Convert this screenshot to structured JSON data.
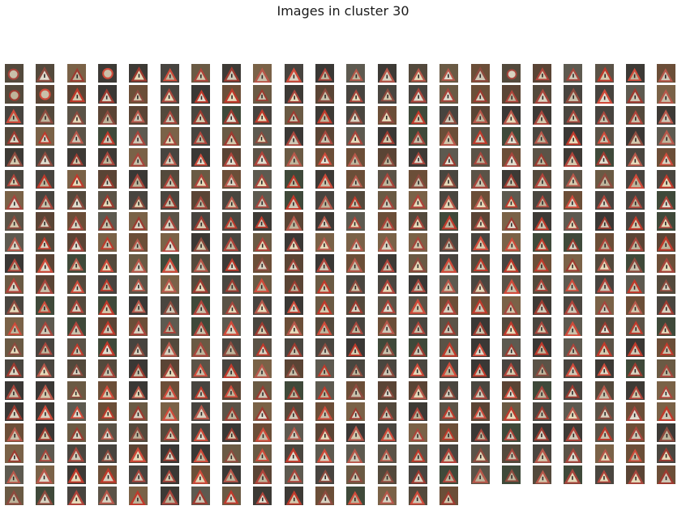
{
  "figure": {
    "title": "Images in cluster 30"
  },
  "chart_data": {
    "type": "image_grid",
    "title": "Images in cluster 30",
    "cluster_id": 30,
    "grid": {
      "columns": 22,
      "rows": 21
    },
    "image_count": 455,
    "last_row_count": 15,
    "content": "thumbnails of triangular red-bordered warning road signs"
  }
}
